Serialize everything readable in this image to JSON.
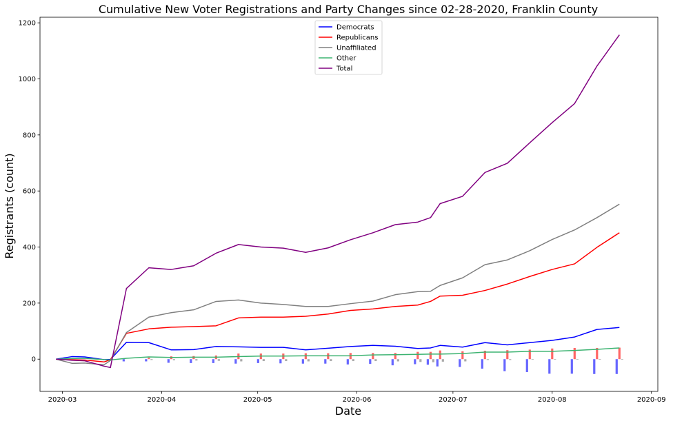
{
  "chart_data": {
    "type": "line",
    "title": "Cumulative New Voter Registrations and Party Changes since 02-28-2020, Franklin County",
    "xlabel": "Date",
    "ylabel": "Registrants (count)",
    "x_ticks": [
      "2020-03",
      "2020-04",
      "2020-05",
      "2020-06",
      "2020-07",
      "2020-08",
      "2020-09"
    ],
    "y_ticks": [
      0,
      200,
      400,
      600,
      800,
      1000,
      1200
    ],
    "xlim": [
      "2020-02-23",
      "2020-09-03"
    ],
    "ylim": [
      -115,
      1220
    ],
    "legend_position": "top-center",
    "x": [
      "2020-02-28",
      "2020-03-04",
      "2020-03-08",
      "2020-03-14",
      "2020-03-16",
      "2020-03-21",
      "2020-03-28",
      "2020-04-04",
      "2020-04-11",
      "2020-04-18",
      "2020-04-25",
      "2020-05-02",
      "2020-05-09",
      "2020-05-16",
      "2020-05-23",
      "2020-05-30",
      "2020-06-06",
      "2020-06-13",
      "2020-06-20",
      "2020-06-24",
      "2020-06-27",
      "2020-07-04",
      "2020-07-11",
      "2020-07-18",
      "2020-07-25",
      "2020-08-01",
      "2020-08-08",
      "2020-08-15",
      "2020-08-22"
    ],
    "series": [
      {
        "name": "Democrats",
        "color": "#0000ff",
        "values": [
          0,
          9,
          8,
          -2,
          -1,
          60,
          59,
          33,
          34,
          45,
          44,
          42,
          42,
          33,
          39,
          45,
          49,
          46,
          38,
          40,
          49,
          43,
          59,
          51,
          59,
          67,
          79,
          106,
          113
        ]
      },
      {
        "name": "Republicans",
        "color": "#ff0000",
        "values": [
          0,
          -2,
          -3,
          -10,
          -2,
          92,
          108,
          114,
          116,
          119,
          147,
          150,
          150,
          153,
          161,
          174,
          179,
          188,
          193,
          206,
          225,
          228,
          245,
          268,
          295,
          320,
          340,
          399,
          451
        ]
      },
      {
        "name": "Unaffiliated",
        "color": "#808080",
        "values": [
          0,
          -15,
          -14,
          -20,
          -5,
          95,
          150,
          166,
          176,
          206,
          211,
          200,
          195,
          188,
          188,
          198,
          207,
          230,
          241,
          242,
          263,
          290,
          337,
          354,
          387,
          427,
          461,
          505,
          553
        ]
      },
      {
        "name": "Other",
        "color": "#3cb371",
        "values": [
          0,
          2,
          3,
          -2,
          -3,
          3,
          8,
          6,
          7,
          7,
          9,
          11,
          11,
          12,
          12,
          12,
          15,
          16,
          17,
          18,
          18,
          20,
          25,
          25,
          28,
          28,
          31,
          35,
          40
        ]
      },
      {
        "name": "Total",
        "color": "#800080",
        "values": [
          0,
          -4,
          -6,
          -25,
          -30,
          252,
          326,
          320,
          333,
          378,
          409,
          400,
          396,
          381,
          397,
          426,
          451,
          480,
          489,
          505,
          555,
          581,
          666,
          699,
          772,
          844,
          912,
          1046,
          1157
        ]
      }
    ],
    "bar_series": [
      {
        "name": "Democrats",
        "color": "#6666ff",
        "values": [
          0,
          0,
          0,
          0,
          0,
          -8,
          -8,
          -13,
          -14,
          -14,
          -16,
          -14,
          -15,
          -16,
          -16,
          -19,
          -17,
          -22,
          -18,
          -20,
          -26,
          -28,
          -34,
          -43,
          -46,
          -52,
          -52,
          -53,
          -53
        ]
      },
      {
        "name": "Republicans",
        "color": "#ff6666",
        "values": [
          0,
          0,
          0,
          0,
          0,
          0,
          5,
          10,
          11,
          13,
          20,
          20,
          20,
          21,
          21,
          22,
          22,
          22,
          26,
          26,
          31,
          28,
          30,
          32,
          34,
          38,
          40,
          40,
          41
        ]
      },
      {
        "name": "Unaffiliated",
        "color": "#aaaaaa",
        "values": [
          0,
          0,
          0,
          0,
          0,
          0,
          -3,
          -4,
          -5,
          -6,
          -8,
          -7,
          -7,
          -8,
          -7,
          -7,
          -7,
          -8,
          -10,
          -11,
          -9,
          -8,
          -3,
          -3,
          -2,
          -2,
          -2,
          -2,
          -2
        ]
      }
    ]
  }
}
